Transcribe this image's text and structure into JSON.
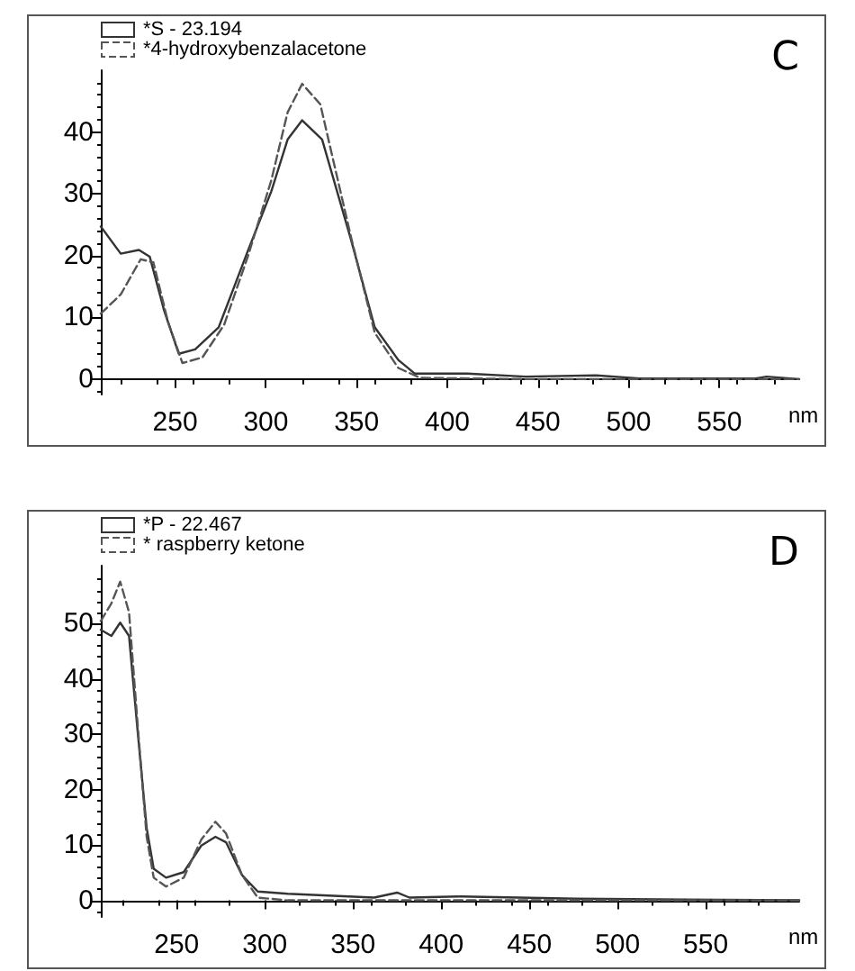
{
  "chart_data": [
    {
      "type": "line",
      "xlabel": "nm",
      "annotations": [
        "C"
      ],
      "legend": "top left",
      "grid": false,
      "marker": "none",
      "xlim": [
        209,
        594
      ],
      "xticks": [
        250,
        300,
        350,
        400,
        450,
        500,
        550
      ],
      "ylim": [
        -2.5,
        50
      ],
      "yticks": [
        0,
        10,
        20,
        30,
        40
      ],
      "series": [
        {
          "name": "*S - 23.194",
          "color": "#333333",
          "line_style": "solid",
          "x": [
            209,
            220,
            230,
            236,
            244,
            252,
            261,
            274,
            290,
            303,
            312,
            320,
            331,
            347,
            360,
            373,
            382,
            411,
            443,
            482,
            506,
            570,
            576,
            594
          ],
          "values": [
            24.7,
            20.3,
            20.9,
            19.8,
            11,
            4.1,
            4.8,
            8.4,
            20.7,
            30.4,
            38.8,
            41.9,
            38.8,
            22.5,
            8.4,
            3.1,
            0.9,
            0.9,
            0.4,
            0.6,
            0.1,
            0.1,
            0.4,
            0
          ]
        },
        {
          "name": "*4-hydroxybenzalacetone",
          "color": "#555555",
          "line_style": "dashed",
          "x": [
            209,
            220,
            231,
            238,
            246,
            254,
            265,
            277,
            290,
            303,
            312,
            320,
            330,
            347,
            360,
            373,
            385,
            443,
            594
          ],
          "values": [
            10.6,
            13.7,
            19.4,
            18.9,
            9.3,
            2.6,
            3.5,
            8.8,
            19.8,
            32.2,
            43.2,
            47.8,
            44.5,
            22.9,
            7.5,
            1.8,
            0.2,
            0,
            0
          ]
        }
      ]
    },
    {
      "type": "line",
      "xlabel": "nm",
      "annotations": [
        "D"
      ],
      "legend": "top left",
      "grid": false,
      "marker": "none",
      "xlim": [
        207,
        603
      ],
      "xticks": [
        250,
        300,
        350,
        400,
        450,
        500,
        550
      ],
      "ylim": [
        -3,
        60.5
      ],
      "yticks": [
        0,
        10,
        20,
        30,
        40,
        50
      ],
      "series": [
        {
          "name": "*P - 22.467",
          "color": "#333333",
          "line_style": "solid",
          "x": [
            207,
            213,
            218,
            223,
            228,
            233,
            237,
            244,
            254,
            264,
            272,
            278,
            287,
            296,
            313,
            362,
            375,
            382,
            411,
            477,
            603
          ],
          "values": [
            48.9,
            47.8,
            50.2,
            47.8,
            30.2,
            13.1,
            5.7,
            4.1,
            5.1,
            9.9,
            11.5,
            10.5,
            4.6,
            1.6,
            1.2,
            0.5,
            1.4,
            0.5,
            0.7,
            0.3,
            0
          ]
        },
        {
          "name": "* raspberry ketone",
          "color": "#555555",
          "line_style": "dashed",
          "x": [
            207,
            213,
            218,
            223,
            228,
            233,
            237,
            244,
            254,
            264,
            272,
            278,
            287,
            296,
            313,
            603
          ],
          "values": [
            50.5,
            53.7,
            57.6,
            52.1,
            31.3,
            11.5,
            4.1,
            2.5,
            4.1,
            11,
            14.2,
            12.1,
            4.6,
            0.5,
            0,
            0
          ]
        }
      ]
    }
  ]
}
